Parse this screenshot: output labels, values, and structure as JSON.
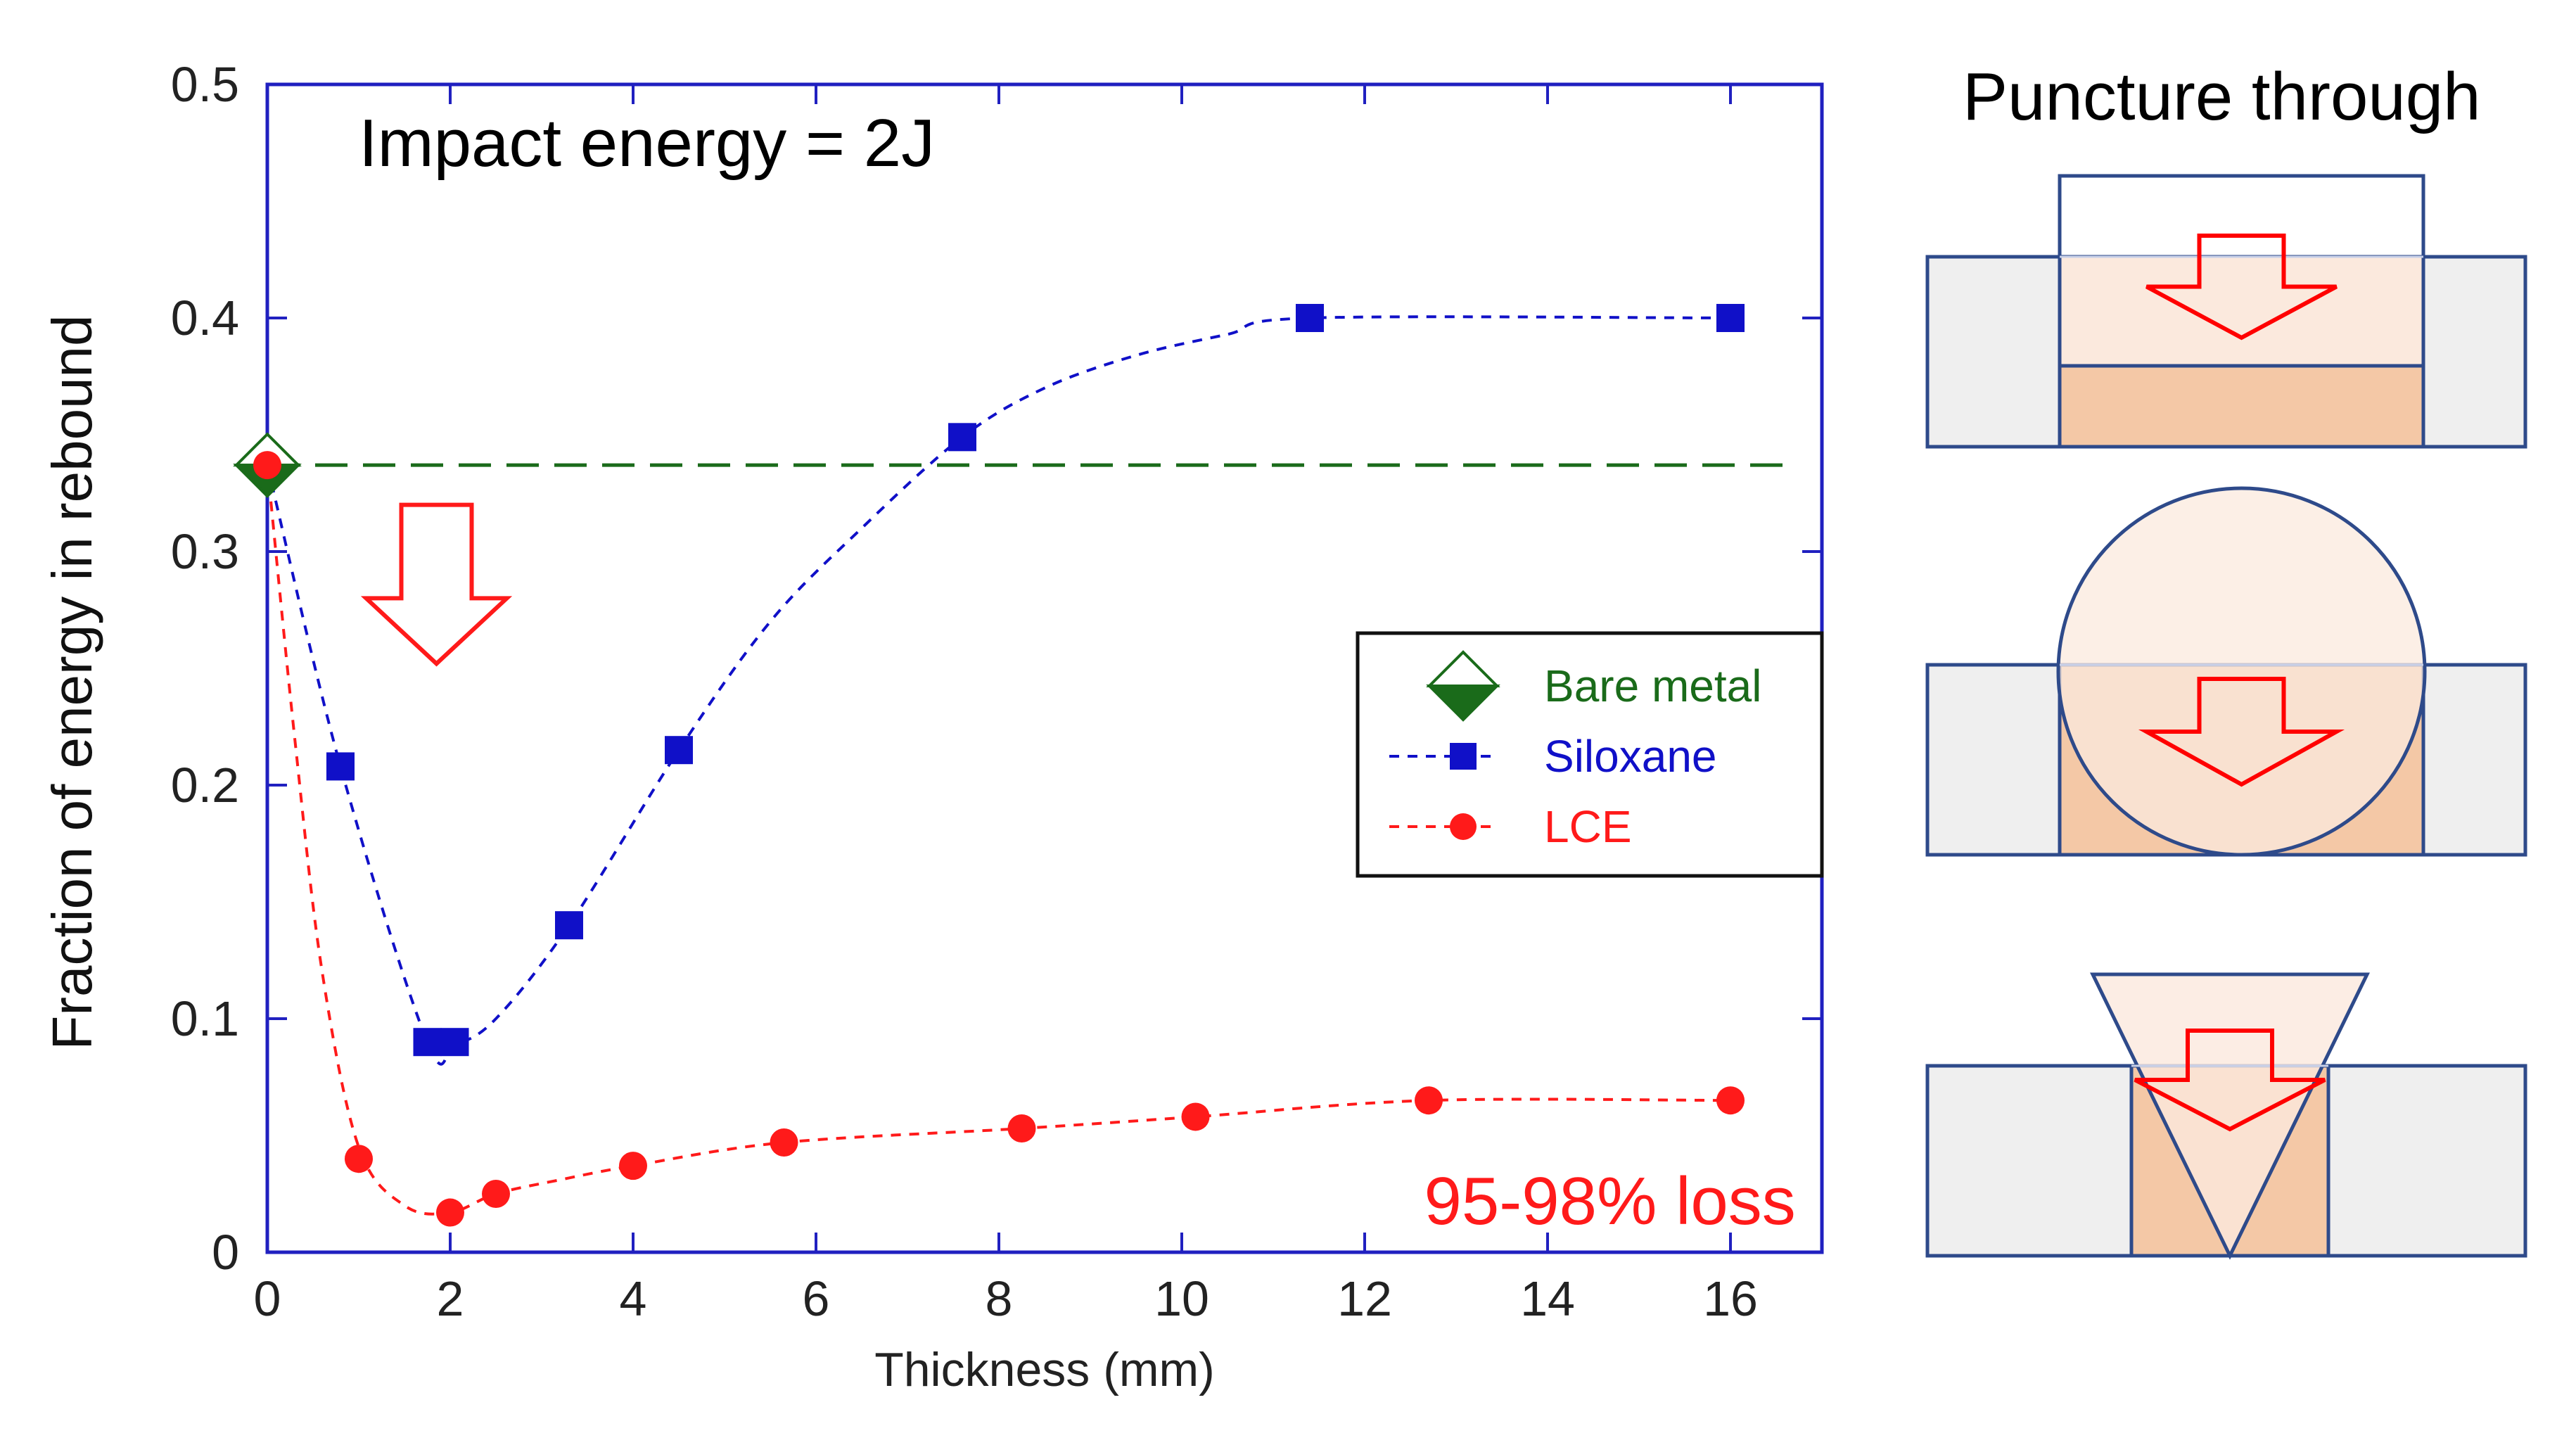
{
  "chart_data": {
    "type": "scatter",
    "title": "",
    "xlabel": "Thickness (mm)",
    "ylabel": "Fraction of energy in rebound",
    "xlim": [
      0,
      17
    ],
    "ylim": [
      0,
      0.5
    ],
    "x_ticks": [
      0,
      2,
      4,
      6,
      8,
      10,
      12,
      14,
      16
    ],
    "y_ticks": [
      0,
      0.1,
      0.2,
      0.3,
      0.4,
      0.5
    ],
    "x_tick_labels": [
      "0",
      "2",
      "4",
      "6",
      "8",
      "10",
      "12",
      "14",
      "16"
    ],
    "y_tick_labels": [
      "0",
      "0.1",
      "0.2",
      "0.3",
      "0.4",
      "0.5"
    ],
    "grid": false,
    "legend_position": "right-middle",
    "series": [
      {
        "name": "Bare metal",
        "color": "#1a6b1a",
        "marker": "diamond",
        "line": "long-dash",
        "x": [
          0
        ],
        "y": [
          0.337
        ],
        "reference_line_y": 0.337,
        "reference_line_x_end": 16.6
      },
      {
        "name": "Siloxane",
        "color": "#1010c8",
        "marker": "square",
        "line": "dashed",
        "x": [
          0,
          0.8,
          1.75,
          2.05,
          3.3,
          4.5,
          7.6,
          11.4,
          16
        ],
        "y": [
          0.337,
          0.208,
          0.09,
          0.09,
          0.14,
          0.215,
          0.349,
          0.4,
          0.4
        ],
        "fit_curve": {
          "x": [
            0,
            0.8,
            1.75,
            2.05,
            2.5,
            3.3,
            4.5,
            5.5,
            6.5,
            7.6,
            8.5,
            9.5,
            10.5,
            11.4,
            16
          ],
          "y": [
            0.337,
            0.208,
            0.09,
            0.089,
            0.1,
            0.14,
            0.215,
            0.27,
            0.31,
            0.349,
            0.37,
            0.384,
            0.393,
            0.4,
            0.4
          ]
        }
      },
      {
        "name": "LCE",
        "color": "#ff1a1a",
        "marker": "circle",
        "line": "dashed",
        "x": [
          0,
          1.0,
          2.0,
          2.5,
          4.0,
          5.65,
          8.25,
          10.15,
          12.7,
          16
        ],
        "y": [
          0.337,
          0.04,
          0.017,
          0.025,
          0.037,
          0.047,
          0.053,
          0.058,
          0.065,
          0.065
        ],
        "fit_curve": {
          "x": [
            0,
            0.3,
            0.6,
            1.0,
            1.5,
            2.0,
            2.5,
            3.2,
            4.0,
            5.65,
            8.25,
            10.15,
            12.7,
            16
          ],
          "y": [
            0.337,
            0.22,
            0.12,
            0.045,
            0.02,
            0.017,
            0.025,
            0.031,
            0.037,
            0.047,
            0.053,
            0.058,
            0.065,
            0.065
          ]
        }
      }
    ],
    "annotations": [
      {
        "text": "Impact energy = 2J",
        "color": "#000000"
      },
      {
        "text": "95-98% loss",
        "color": "#ff1a1a"
      }
    ]
  },
  "side_panel": {
    "title": "Puncture through",
    "diagrams": [
      {
        "indenter": "flat-punch"
      },
      {
        "indenter": "sphere"
      },
      {
        "indenter": "cone"
      }
    ],
    "colors": {
      "outline": "#2e4a8a",
      "block_fill": "#efefef",
      "sample_fill": "#f4c8a6",
      "indenter_overlay": "#fbe9dd",
      "arrow": "#ff0000"
    }
  }
}
